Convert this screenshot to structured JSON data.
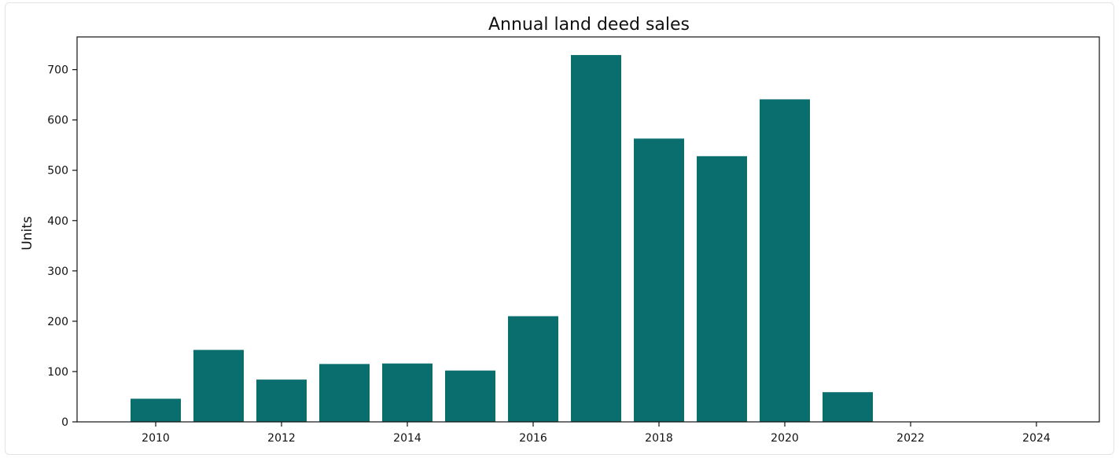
{
  "chart_data": {
    "type": "bar",
    "title": "Annual land deed sales",
    "xlabel": "",
    "ylabel": "Units",
    "x": [
      2010,
      2011,
      2012,
      2013,
      2014,
      2015,
      2016,
      2017,
      2018,
      2019,
      2020,
      2021,
      2022,
      2023,
      2024
    ],
    "values": [
      46,
      143,
      84,
      115,
      116,
      102,
      210,
      729,
      563,
      528,
      641,
      59,
      0,
      0,
      0
    ],
    "xlim": [
      2008.75,
      2025.0
    ],
    "ylim": [
      0,
      765
    ],
    "xticks": [
      2010,
      2012,
      2014,
      2016,
      2018,
      2020,
      2022,
      2024
    ],
    "yticks": [
      0,
      100,
      200,
      300,
      400,
      500,
      600,
      700
    ],
    "bar_color": "#0b6e6e",
    "grid": false,
    "legend": "none"
  }
}
